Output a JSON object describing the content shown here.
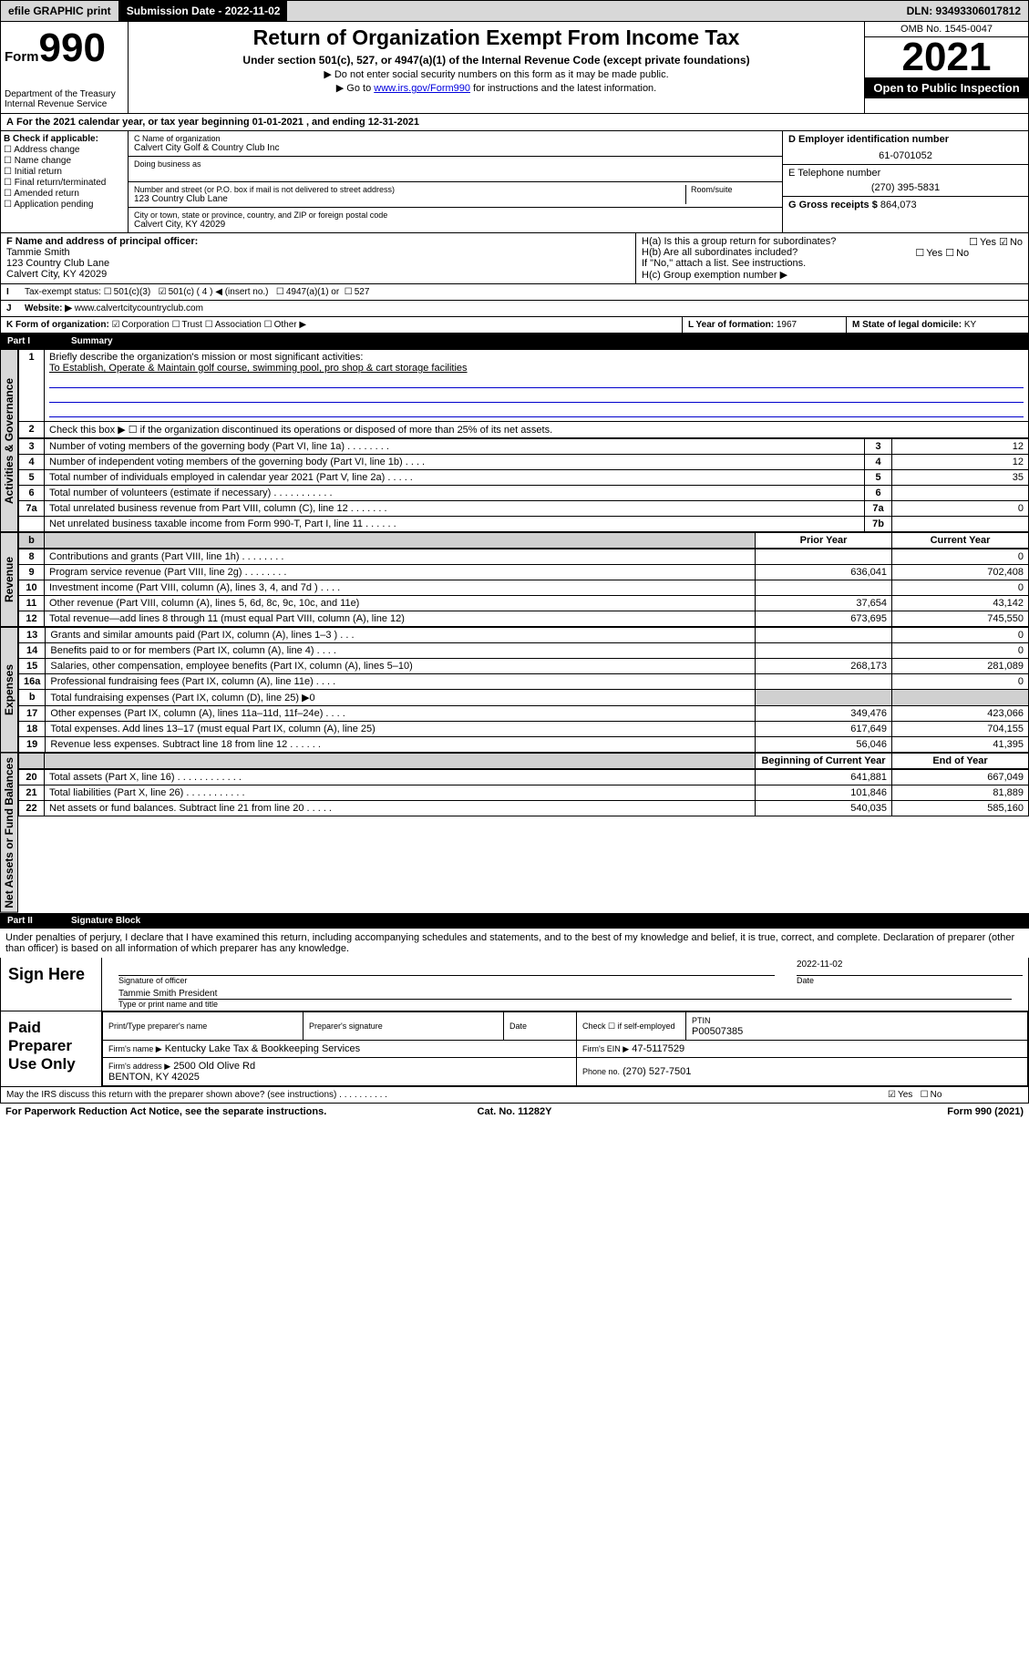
{
  "topbar": {
    "efile": "efile GRAPHIC print",
    "submission": "Submission Date - 2022-11-02",
    "dln": "DLN: 93493306017812"
  },
  "header": {
    "form_prefix": "Form",
    "form_num": "990",
    "dept": "Department of the Treasury",
    "irs": "Internal Revenue Service",
    "title": "Return of Organization Exempt From Income Tax",
    "subtitle": "Under section 501(c), 527, or 4947(a)(1) of the Internal Revenue Code (except private foundations)",
    "note1": "▶ Do not enter social security numbers on this form as it may be made public.",
    "note2_pre": "▶ Go to ",
    "note2_link": "www.irs.gov/Form990",
    "note2_post": " for instructions and the latest information.",
    "omb": "OMB No. 1545-0047",
    "year": "2021",
    "open": "Open to Public Inspection"
  },
  "row_a": "For the 2021 calendar year, or tax year beginning 01-01-2021   , and ending 12-31-2021",
  "b": {
    "label": "B Check if applicable:",
    "opts": [
      "Address change",
      "Name change",
      "Initial return",
      "Final return/terminated",
      "Amended return",
      "Application pending"
    ]
  },
  "c": {
    "name_label": "C Name of organization",
    "name": "Calvert City Golf & Country Club Inc",
    "dba_label": "Doing business as",
    "addr_label": "Number and street (or P.O. box if mail is not delivered to street address)",
    "room_label": "Room/suite",
    "addr": "123 Country Club Lane",
    "city_label": "City or town, state or province, country, and ZIP or foreign postal code",
    "city": "Calvert City, KY  42029"
  },
  "d": {
    "label": "D Employer identification number",
    "value": "61-0701052"
  },
  "e": {
    "label": "E Telephone number",
    "value": "(270) 395-5831"
  },
  "g": {
    "label": "G Gross receipts $",
    "value": "864,073"
  },
  "f": {
    "label": "F Name and address of principal officer:",
    "name": "Tammie Smith",
    "addr1": "123 Country Club Lane",
    "addr2": "Calvert City, KY  42029"
  },
  "h": {
    "a_label": "H(a)  Is this a group return for subordinates?",
    "a_yes": "Yes",
    "a_no": "No",
    "b_label": "H(b)  Are all subordinates included?",
    "b_yes": "Yes",
    "b_no": "No",
    "b_note": "If \"No,\" attach a list. See instructions.",
    "c_label": "H(c)  Group exemption number ▶"
  },
  "i": {
    "label": "Tax-exempt status:",
    "opt1": "501(c)(3)",
    "opt2": "501(c) ( 4 ) ◀ (insert no.)",
    "opt3": "4947(a)(1) or",
    "opt4": "527"
  },
  "j": {
    "label": "Website: ▶",
    "value": "www.calvertcitycountryclub.com"
  },
  "k": {
    "label": "K Form of organization:",
    "opts": [
      "Corporation",
      "Trust",
      "Association",
      "Other ▶"
    ]
  },
  "l": {
    "label": "L Year of formation:",
    "value": "1967"
  },
  "m": {
    "label": "M State of legal domicile:",
    "value": "KY"
  },
  "part1": {
    "label": "Part I",
    "title": "Summary"
  },
  "summary": {
    "q1_label": "Briefly describe the organization's mission or most significant activities:",
    "q1_text": "To Establish, Operate & Maintain golf course, swimming pool, pro shop & cart storage facilities",
    "q2": "Check this box ▶ ☐  if the organization discontinued its operations or disposed of more than 25% of its net assets.",
    "rows_gov": [
      {
        "n": "3",
        "desc": "Number of voting members of the governing body (Part VI, line 1a)   .    .    .    .    .    .    .    .",
        "cell": "3",
        "val": "12"
      },
      {
        "n": "4",
        "desc": "Number of independent voting members of the governing body (Part VI, line 1b)    .    .    .    .",
        "cell": "4",
        "val": "12"
      },
      {
        "n": "5",
        "desc": "Total number of individuals employed in calendar year 2021 (Part V, line 2a)    .    .    .    .    .",
        "cell": "5",
        "val": "35"
      },
      {
        "n": "6",
        "desc": "Total number of volunteers (estimate if necessary)    .    .    .    .    .    .    .    .    .    .    .",
        "cell": "6",
        "val": ""
      },
      {
        "n": "7a",
        "desc": "Total unrelated business revenue from Part VIII, column (C), line 12   .    .    .    .    .    .    .",
        "cell": "7a",
        "val": "0"
      },
      {
        "n": "",
        "desc": "Net unrelated business taxable income from Form 990-T, Part I, line 11    .    .    .    .    .    .",
        "cell": "7b",
        "val": ""
      }
    ],
    "prior_hdr": "Prior Year",
    "curr_hdr": "Current Year",
    "rows_rev": [
      {
        "n": "8",
        "desc": "Contributions and grants (Part VIII, line 1h)    .    .    .    .    .    .    .    .",
        "prior": "",
        "curr": "0"
      },
      {
        "n": "9",
        "desc": "Program service revenue (Part VIII, line 2g)    .    .    .    .    .    .    .    .",
        "prior": "636,041",
        "curr": "702,408"
      },
      {
        "n": "10",
        "desc": "Investment income (Part VIII, column (A), lines 3, 4, and 7d )    .    .    .    .",
        "prior": "",
        "curr": "0"
      },
      {
        "n": "11",
        "desc": "Other revenue (Part VIII, column (A), lines 5, 6d, 8c, 9c, 10c, and 11e)",
        "prior": "37,654",
        "curr": "43,142"
      },
      {
        "n": "12",
        "desc": "Total revenue—add lines 8 through 11 (must equal Part VIII, column (A), line 12)",
        "prior": "673,695",
        "curr": "745,550"
      }
    ],
    "rows_exp": [
      {
        "n": "13",
        "desc": "Grants and similar amounts paid (Part IX, column (A), lines 1–3 )    .    .    .",
        "prior": "",
        "curr": "0"
      },
      {
        "n": "14",
        "desc": "Benefits paid to or for members (Part IX, column (A), line 4)    .    .    .    .",
        "prior": "",
        "curr": "0"
      },
      {
        "n": "15",
        "desc": "Salaries, other compensation, employee benefits (Part IX, column (A), lines 5–10)",
        "prior": "268,173",
        "curr": "281,089"
      },
      {
        "n": "16a",
        "desc": "Professional fundraising fees (Part IX, column (A), line 11e)    .    .    .    .",
        "prior": "",
        "curr": "0"
      },
      {
        "n": "b",
        "desc": "Total fundraising expenses (Part IX, column (D), line 25) ▶0",
        "prior": "SHADED",
        "curr": "SHADED"
      },
      {
        "n": "17",
        "desc": "Other expenses (Part IX, column (A), lines 11a–11d, 11f–24e)    .    .    .    .",
        "prior": "349,476",
        "curr": "423,066"
      },
      {
        "n": "18",
        "desc": "Total expenses. Add lines 13–17 (must equal Part IX, column (A), line 25)",
        "prior": "617,649",
        "curr": "704,155"
      },
      {
        "n": "19",
        "desc": "Revenue less expenses. Subtract line 18 from line 12    .    .    .    .    .    .",
        "prior": "56,046",
        "curr": "41,395"
      }
    ],
    "begin_hdr": "Beginning of Current Year",
    "end_hdr": "End of Year",
    "rows_net": [
      {
        "n": "20",
        "desc": "Total assets (Part X, line 16)    .    .    .    .    .    .    .    .    .    .    .    .",
        "prior": "641,881",
        "curr": "667,049"
      },
      {
        "n": "21",
        "desc": "Total liabilities (Part X, line 26)    .    .    .    .    .    .    .    .    .    .    .",
        "prior": "101,846",
        "curr": "81,889"
      },
      {
        "n": "22",
        "desc": "Net assets or fund balances. Subtract line 21 from line 20    .    .    .    .    .",
        "prior": "540,035",
        "curr": "585,160"
      }
    ]
  },
  "side_labels": {
    "gov": "Activities & Governance",
    "rev": "Revenue",
    "exp": "Expenses",
    "net": "Net Assets or Fund Balances"
  },
  "part2": {
    "label": "Part II",
    "title": "Signature Block"
  },
  "sig": {
    "penalty": "Under penalties of perjury, I declare that I have examined this return, including accompanying schedules and statements, and to the best of my knowledge and belief, it is true, correct, and complete. Declaration of preparer (other than officer) is based on all information of which preparer has any knowledge.",
    "here": "Sign Here",
    "sig_officer": "Signature of officer",
    "date_lbl": "Date",
    "date": "2022-11-02",
    "name": "Tammie Smith President",
    "name_lbl": "Type or print name and title",
    "paid": "Paid Preparer Use Only",
    "prep_name_lbl": "Print/Type preparer's name",
    "prep_sig_lbl": "Preparer's signature",
    "check_lbl": "Check ☐ if self-employed",
    "ptin_lbl": "PTIN",
    "ptin": "P00507385",
    "firm_name_lbl": "Firm's name   ▶",
    "firm_name": "Kentucky Lake Tax & Bookkeeping Services",
    "firm_ein_lbl": "Firm's EIN ▶",
    "firm_ein": "47-5117529",
    "firm_addr_lbl": "Firm's address ▶",
    "firm_addr1": "2500 Old Olive Rd",
    "firm_addr2": "BENTON, KY  42025",
    "phone_lbl": "Phone no.",
    "phone": "(270) 527-7501",
    "discuss": "May the IRS discuss this return with the preparer shown above? (see instructions)    .    .    .    .    .    .    .    .    .    .",
    "discuss_yes": "Yes",
    "discuss_no": "No"
  },
  "footer": {
    "pra": "For Paperwork Reduction Act Notice, see the separate instructions.",
    "cat": "Cat. No. 11282Y",
    "form": "Form 990 (2021)"
  },
  "colors": {
    "grey_bg": "#d8d8d8",
    "link": "#0000dd",
    "mission_line": "#0000cc"
  }
}
